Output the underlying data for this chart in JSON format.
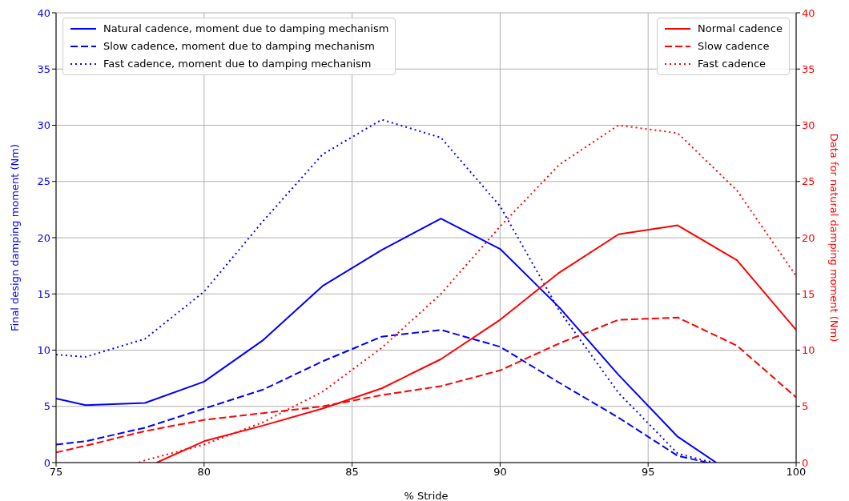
{
  "chart_data": {
    "type": "line",
    "xlabel": "% Stride",
    "ylabel": "Final design damping moment (Nm)",
    "y2label": "Data for natural damping moment (Nm)",
    "xlim": [
      75,
      100
    ],
    "xticks": [
      75,
      80,
      85,
      90,
      95,
      100
    ],
    "ylim": [
      0,
      40
    ],
    "yticks": [
      0,
      5,
      10,
      15,
      20,
      25,
      30,
      35,
      40
    ],
    "y2lim": [
      0,
      40
    ],
    "y2ticks": [
      0,
      5,
      10,
      15,
      20,
      25,
      30,
      35,
      40
    ],
    "grid": true,
    "legend": "top",
    "marker": "none",
    "series": [
      {
        "name": "Natural cadence, moment due to damping mechanism",
        "color": "#0000ff",
        "line_style": "solid",
        "x": [
          75,
          76,
          78,
          80,
          82,
          84,
          86,
          88,
          90,
          92,
          94,
          96,
          97.3
        ],
        "values": [
          5.7,
          5.1,
          5.3,
          7.2,
          10.9,
          15.7,
          18.9,
          21.7,
          19.0,
          13.8,
          7.8,
          2.3,
          0
        ]
      },
      {
        "name": "Slow cadence, moment due to damping mechanism",
        "color": "#0000ff",
        "line_style": "dashed",
        "x": [
          75,
          76,
          78,
          80,
          82,
          84,
          86,
          88,
          90,
          92,
          94,
          96,
          97
        ],
        "values": [
          1.6,
          1.9,
          3.1,
          4.8,
          6.5,
          9.0,
          11.2,
          11.8,
          10.3,
          7.1,
          4.0,
          0.6,
          0
        ]
      },
      {
        "name": "Fast cadence, moment due to damping mechanism",
        "color": "#0000ff",
        "line_style": "dotted",
        "x": [
          75,
          76,
          78,
          80,
          82,
          84,
          86,
          88,
          90,
          92,
          94,
          96,
          97.2
        ],
        "values": [
          9.6,
          9.4,
          11.0,
          15.2,
          21.5,
          27.4,
          30.5,
          28.9,
          22.8,
          13.5,
          6.2,
          0.8,
          0
        ]
      },
      {
        "name": "Normal cadence",
        "color": "#ff0000",
        "line_style": "solid",
        "axis": "y2",
        "x": [
          78.4,
          80,
          82,
          84,
          86,
          88,
          90,
          92,
          94,
          96,
          98,
          100
        ],
        "values": [
          0,
          1.9,
          3.3,
          4.8,
          6.6,
          9.2,
          12.7,
          16.9,
          20.3,
          21.1,
          18.0,
          11.8
        ]
      },
      {
        "name": "Slow cadence",
        "color": "#ff0000",
        "line_style": "dashed",
        "axis": "y2",
        "x": [
          75,
          76,
          78,
          80,
          82,
          84,
          86,
          88,
          90,
          92,
          94,
          96,
          98,
          100
        ],
        "values": [
          0.9,
          1.5,
          2.8,
          3.8,
          4.4,
          5.0,
          6.0,
          6.8,
          8.2,
          10.6,
          12.7,
          12.9,
          10.4,
          5.8
        ]
      },
      {
        "name": "Fast cadence",
        "color": "#ff0000",
        "line_style": "dotted",
        "axis": "y2",
        "x": [
          77.8,
          78,
          80,
          82,
          84,
          86,
          88,
          90,
          92,
          94,
          96,
          98,
          100
        ],
        "values": [
          0,
          0.2,
          1.6,
          3.6,
          6.3,
          10.2,
          15.0,
          21.0,
          26.5,
          30.0,
          29.3,
          24.2,
          16.6
        ]
      }
    ]
  }
}
